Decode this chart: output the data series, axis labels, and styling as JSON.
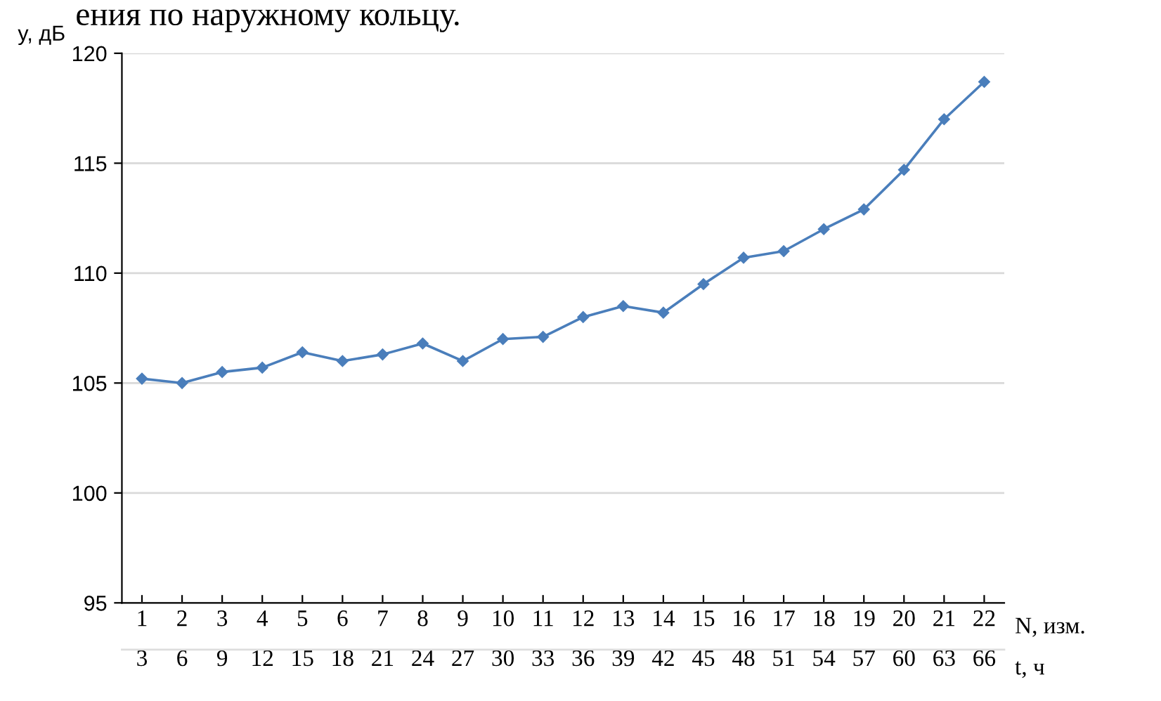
{
  "chart_data": {
    "type": "line",
    "xlabel": "N, изм.",
    "ylabel": "y, дБ",
    "x2label": "t, ч",
    "annotations": [
      "ения по наружному кольцу."
    ],
    "categories": [
      "1",
      "2",
      "3",
      "4",
      "5",
      "6",
      "7",
      "8",
      "9",
      "10",
      "11",
      "12",
      "13",
      "14",
      "15",
      "16",
      "17",
      "18",
      "19",
      "20",
      "21",
      "22"
    ],
    "series": [
      {
        "color": "#4a7ebb",
        "values": [
          105.2,
          105.0,
          105.5,
          105.7,
          106.4,
          106.0,
          106.3,
          106.8,
          106.0,
          107.0,
          107.1,
          108.0,
          108.5,
          108.2,
          109.5,
          110.7,
          111.0,
          112.0,
          112.9,
          114.7,
          117.0,
          118.7
        ]
      }
    ],
    "ylim": [
      95,
      120
    ],
    "yticks": [
      95,
      100,
      105,
      110,
      115,
      120
    ],
    "x2lim": [
      1.5,
      67.5
    ],
    "x2ticks": [
      3,
      6,
      9,
      12,
      15,
      18,
      21,
      24,
      27,
      30,
      33,
      36,
      39,
      42,
      45,
      48,
      51,
      54,
      57,
      60,
      63,
      66
    ],
    "grid": "y",
    "legend": false,
    "marker": "diamond",
    "line_style": "solid"
  }
}
